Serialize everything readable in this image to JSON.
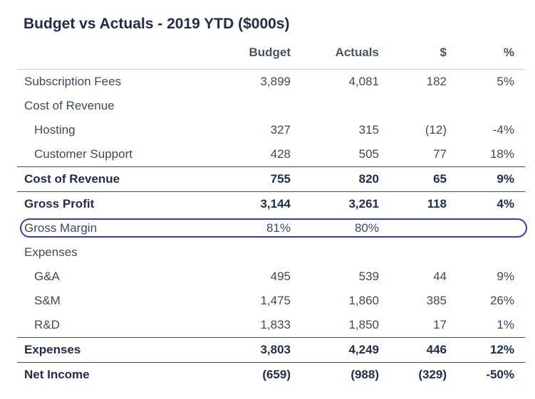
{
  "title": "Budget vs Actuals - 2019 YTD ($000s)",
  "highlight_color": "#2a3ec8",
  "chart_data": {
    "type": "table",
    "title": "Budget vs Actuals - 2019 YTD ($000s)",
    "columns": [
      "",
      "Budget",
      "Actuals",
      "$",
      "%"
    ],
    "rows": [
      {
        "label": "Subscription Fees",
        "budget": "3,899",
        "actuals": "4,081",
        "diff": "182",
        "pct": "5%"
      },
      {
        "label": "Cost of Revenue",
        "budget": "",
        "actuals": "",
        "diff": "",
        "pct": ""
      },
      {
        "label": "Hosting",
        "budget": "327",
        "actuals": "315",
        "diff": "(12)",
        "pct": "-4%"
      },
      {
        "label": "Customer Support",
        "budget": "428",
        "actuals": "505",
        "diff": "77",
        "pct": "18%"
      },
      {
        "label": "Cost of Revenue",
        "budget": "755",
        "actuals": "820",
        "diff": "65",
        "pct": "9%"
      },
      {
        "label": "Gross Profit",
        "budget": "3,144",
        "actuals": "3,261",
        "diff": "118",
        "pct": "4%"
      },
      {
        "label": "Gross Margin",
        "budget": "81%",
        "actuals": "80%",
        "diff": "",
        "pct": ""
      },
      {
        "label": "Expenses",
        "budget": "",
        "actuals": "",
        "diff": "",
        "pct": ""
      },
      {
        "label": "G&A",
        "budget": "495",
        "actuals": "539",
        "diff": "44",
        "pct": "9%"
      },
      {
        "label": "S&M",
        "budget": "1,475",
        "actuals": "1,860",
        "diff": "385",
        "pct": "26%"
      },
      {
        "label": "R&D",
        "budget": "1,833",
        "actuals": "1,850",
        "diff": "17",
        "pct": "1%"
      },
      {
        "label": "Expenses",
        "budget": "3,803",
        "actuals": "4,249",
        "diff": "446",
        "pct": "12%"
      },
      {
        "label": "Net Income",
        "budget": "(659)",
        "actuals": "(988)",
        "diff": "(329)",
        "pct": "-50%"
      }
    ]
  }
}
